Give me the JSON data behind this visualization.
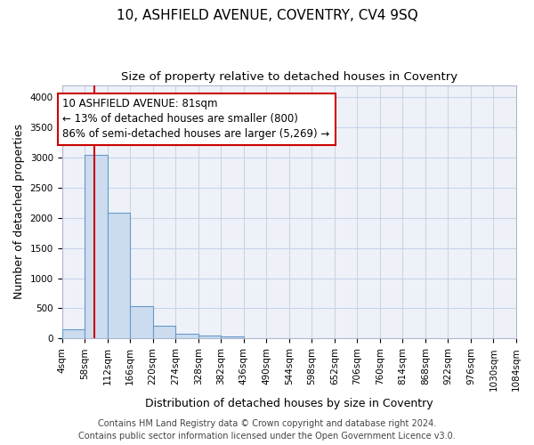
{
  "title": "10, ASHFIELD AVENUE, COVENTRY, CV4 9SQ",
  "subtitle": "Size of property relative to detached houses in Coventry",
  "xlabel": "Distribution of detached houses by size in Coventry",
  "ylabel": "Number of detached properties",
  "bar_color": "#ccdcee",
  "bar_edge_color": "#6699cc",
  "bin_edges": [
    4,
    58,
    112,
    166,
    220,
    274,
    328,
    382,
    436,
    490,
    544,
    598,
    652,
    706,
    760,
    814,
    868,
    922,
    976,
    1030,
    1084
  ],
  "bar_heights": [
    150,
    3050,
    2080,
    540,
    210,
    80,
    55,
    30,
    0,
    0,
    0,
    0,
    0,
    0,
    0,
    0,
    0,
    0,
    0,
    0
  ],
  "tick_labels": [
    "4sqm",
    "58sqm",
    "112sqm",
    "166sqm",
    "220sqm",
    "274sqm",
    "328sqm",
    "382sqm",
    "436sqm",
    "490sqm",
    "544sqm",
    "598sqm",
    "652sqm",
    "706sqm",
    "760sqm",
    "814sqm",
    "868sqm",
    "922sqm",
    "976sqm",
    "1030sqm",
    "1084sqm"
  ],
  "property_size": 81,
  "vline_color": "#cc0000",
  "annotation_text": "10 ASHFIELD AVENUE: 81sqm\n← 13% of detached houses are smaller (800)\n86% of semi-detached houses are larger (5,269) →",
  "annotation_box_color": "#cc0000",
  "ylim": [
    0,
    4200
  ],
  "yticks": [
    0,
    500,
    1000,
    1500,
    2000,
    2500,
    3000,
    3500,
    4000
  ],
  "footer_line1": "Contains HM Land Registry data © Crown copyright and database right 2024.",
  "footer_line2": "Contains public sector information licensed under the Open Government Licence v3.0.",
  "plot_bg_color": "#eef2f8",
  "fig_bg_color": "#ffffff",
  "grid_color": "#c8d4e8",
  "title_fontsize": 11,
  "subtitle_fontsize": 9.5,
  "label_fontsize": 9,
  "tick_fontsize": 7.5,
  "annotation_fontsize": 8.5,
  "footer_fontsize": 7
}
